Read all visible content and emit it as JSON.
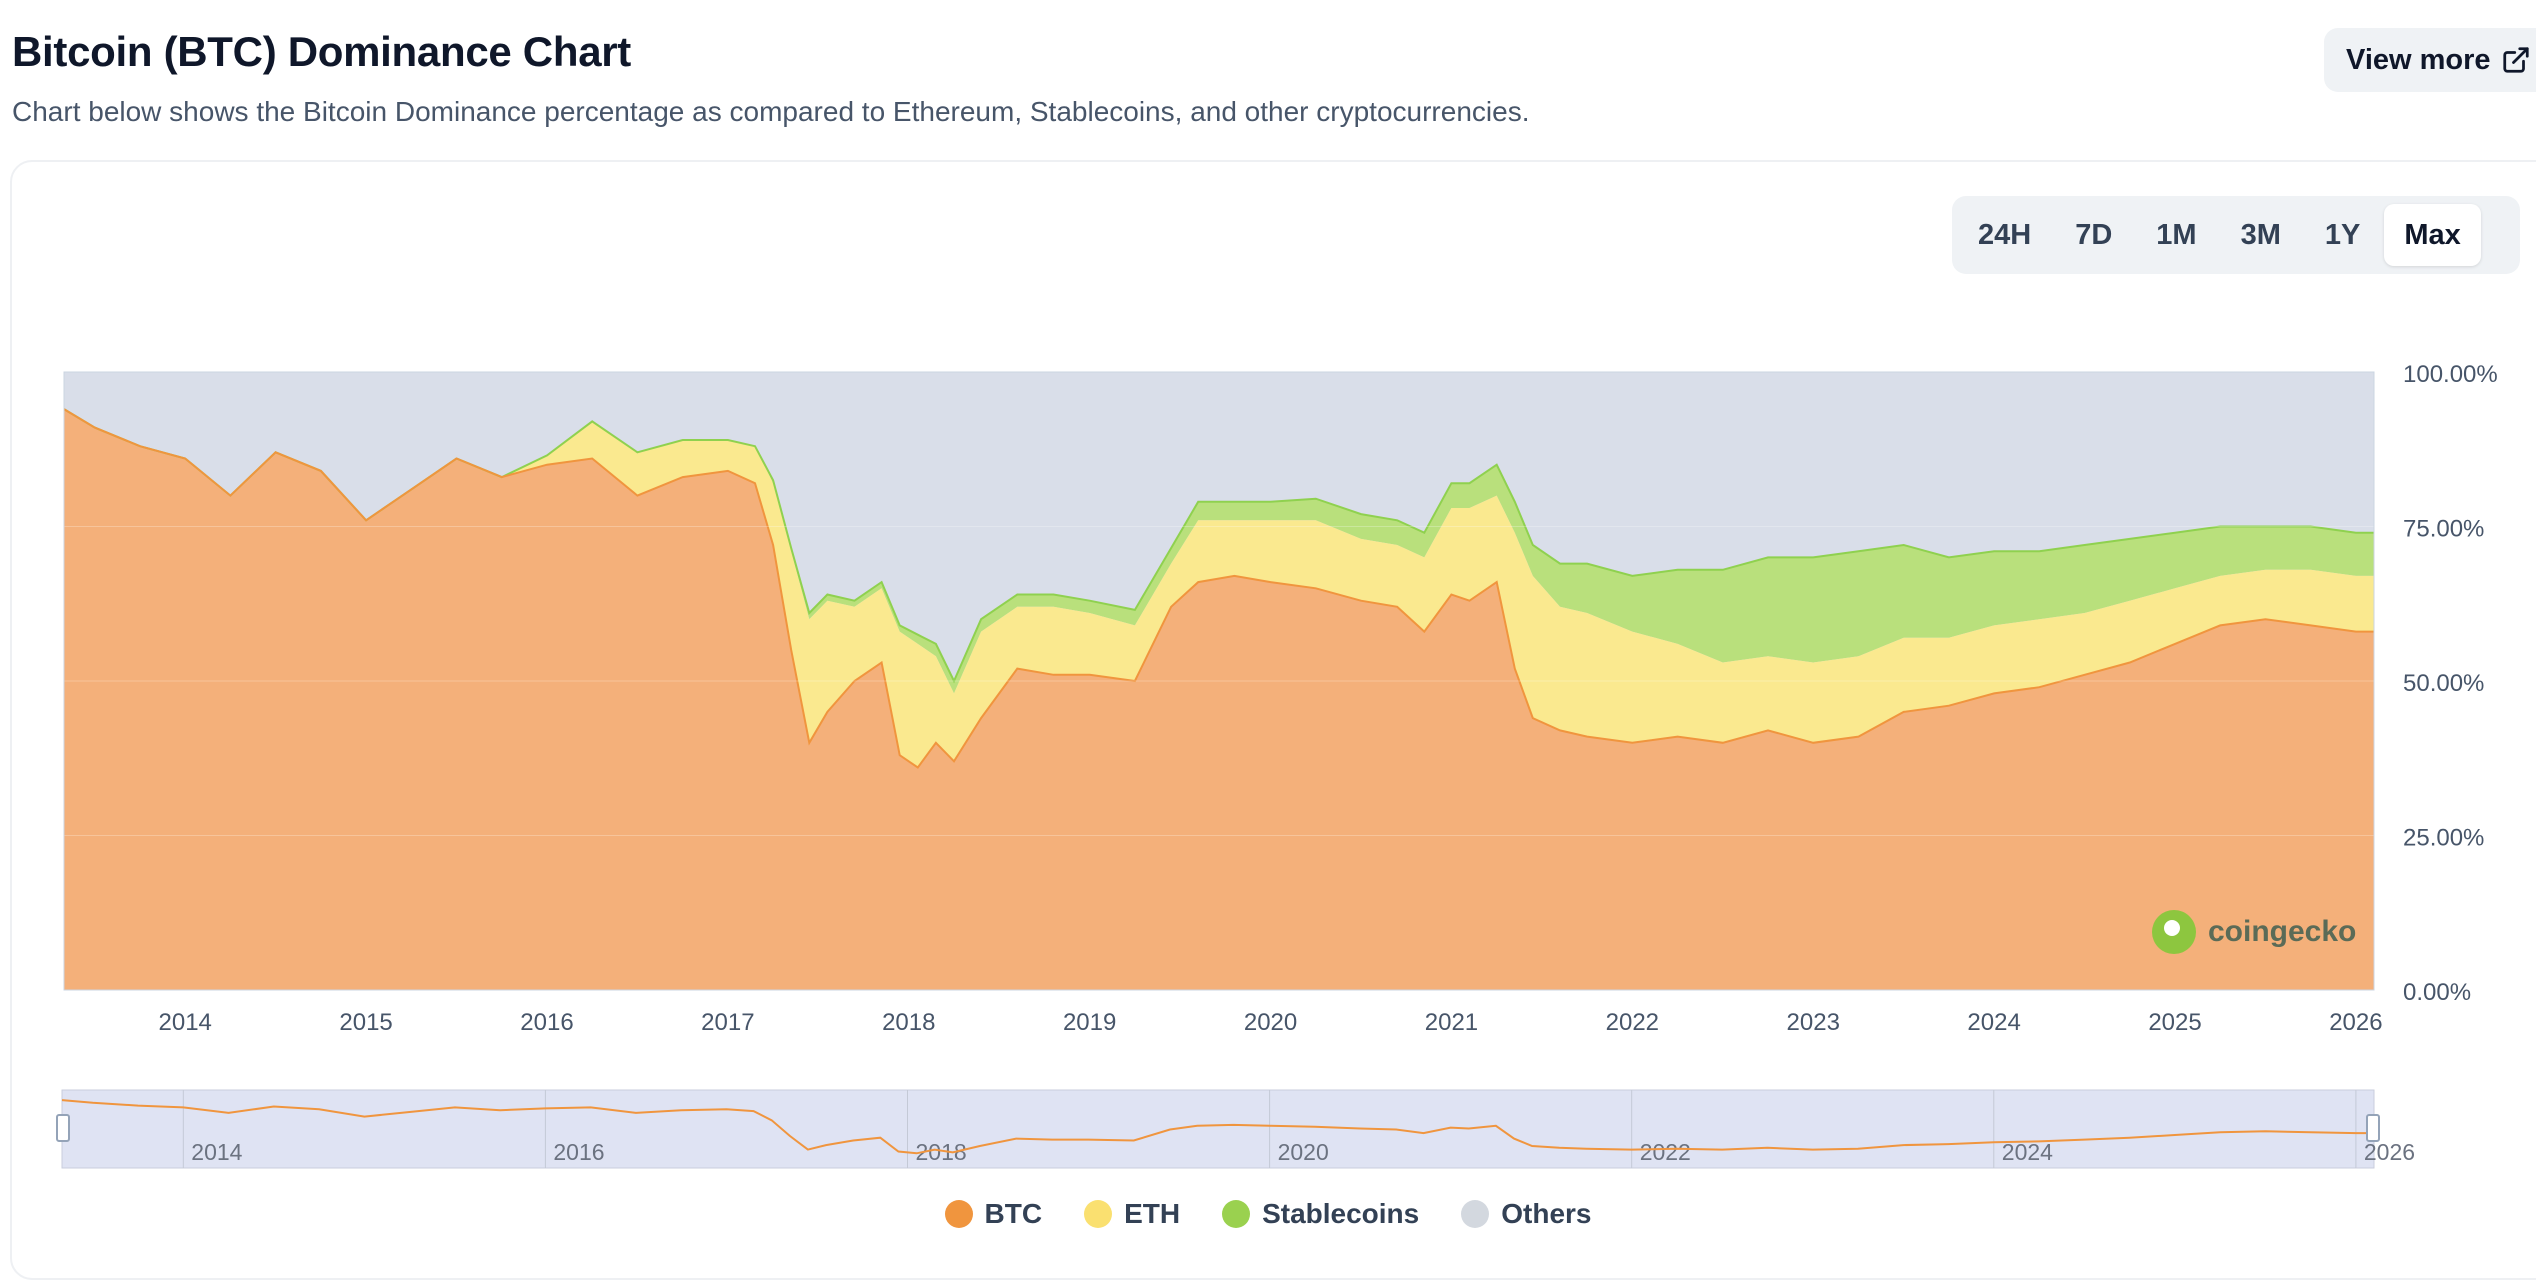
{
  "header": {
    "title": "Bitcoin (BTC) Dominance Chart",
    "subtitle": "Chart below shows the Bitcoin Dominance percentage as compared to Ethereum, Stablecoins, and other cryptocurrencies.",
    "view_more_label": "View more"
  },
  "range_buttons": [
    "24H",
    "7D",
    "1M",
    "3M",
    "1Y",
    "Max"
  ],
  "range_selected": "Max",
  "logo_text": "coingecko",
  "colors": {
    "btc": "#f4b07a",
    "btc_line": "#f0953e",
    "eth": "#fae98f",
    "stable": "#b9e07c",
    "stable_line": "#8fd14f",
    "others": "#d9dee9",
    "legend_btc": "#f0953e",
    "legend_eth": "#fae070",
    "legend_stable": "#9ad14f",
    "legend_others": "#d3d8df"
  },
  "chart_data": {
    "type": "area",
    "stacked": true,
    "title": "Bitcoin (BTC) Dominance Chart",
    "ylim": [
      0,
      100
    ],
    "yticks": [
      "0.00%",
      "25.00%",
      "50.00%",
      "75.00%",
      "100.00%"
    ],
    "xlim": [
      2013.33,
      2026.1
    ],
    "xticks": [
      "2014",
      "2015",
      "2016",
      "2017",
      "2018",
      "2019",
      "2020",
      "2021",
      "2022",
      "2023",
      "2024",
      "2025",
      "2026"
    ],
    "x": [
      2013.33,
      2013.5,
      2013.75,
      2014.0,
      2014.25,
      2014.5,
      2014.75,
      2015.0,
      2015.25,
      2015.5,
      2015.75,
      2016.0,
      2016.25,
      2016.5,
      2016.75,
      2017.0,
      2017.15,
      2017.25,
      2017.35,
      2017.45,
      2017.55,
      2017.7,
      2017.85,
      2017.95,
      2018.05,
      2018.15,
      2018.25,
      2018.4,
      2018.6,
      2018.8,
      2019.0,
      2019.25,
      2019.45,
      2019.6,
      2019.8,
      2020.0,
      2020.25,
      2020.5,
      2020.7,
      2020.85,
      2021.0,
      2021.1,
      2021.25,
      2021.35,
      2021.45,
      2021.6,
      2021.75,
      2022.0,
      2022.25,
      2022.5,
      2022.75,
      2023.0,
      2023.25,
      2023.5,
      2023.75,
      2024.0,
      2024.25,
      2024.5,
      2024.75,
      2025.0,
      2025.25,
      2025.5,
      2025.75,
      2026.0,
      2026.1
    ],
    "series": [
      {
        "name": "BTC",
        "values": [
          94,
          91,
          88,
          86,
          80,
          87,
          84,
          76,
          81,
          86,
          83,
          85,
          86,
          80,
          83,
          84,
          82,
          72,
          55,
          40,
          45,
          50,
          53,
          38,
          36,
          40,
          37,
          44,
          52,
          51,
          51,
          50,
          62,
          66,
          67,
          66,
          65,
          63,
          62,
          58,
          64,
          63,
          66,
          52,
          44,
          42,
          41,
          40,
          41,
          40,
          42,
          40,
          41,
          45,
          46,
          48,
          49,
          51,
          53,
          56,
          59,
          60,
          59,
          58,
          58
        ]
      },
      {
        "name": "ETH",
        "values": [
          0,
          0,
          0,
          0,
          0,
          0,
          0,
          0,
          0,
          0,
          0,
          1.5,
          6,
          7,
          6,
          5,
          6,
          10,
          16,
          20,
          18,
          12,
          12,
          20,
          20,
          14,
          11,
          14,
          10,
          11,
          10,
          9,
          7,
          10,
          9,
          10,
          11,
          10,
          10,
          12,
          14,
          15,
          14,
          22,
          23,
          20,
          20,
          18,
          15,
          13,
          12,
          13,
          13,
          12,
          11,
          11,
          11,
          10,
          10,
          9,
          8,
          8,
          9,
          9,
          9
        ]
      },
      {
        "name": "Stablecoins",
        "values": [
          0,
          0,
          0,
          0,
          0,
          0,
          0,
          0,
          0,
          0,
          0,
          0,
          0,
          0,
          0,
          0,
          0,
          0.5,
          0.5,
          1,
          1,
          1,
          1,
          1,
          1.5,
          2,
          2,
          2,
          2,
          2,
          2,
          2.5,
          2.5,
          3,
          3,
          3,
          3.5,
          4,
          4,
          4,
          4,
          4,
          5,
          5,
          5,
          7,
          8,
          9,
          12,
          15,
          16,
          17,
          17,
          15,
          13,
          12,
          11,
          11,
          10,
          9,
          8,
          7,
          7,
          7,
          7
        ]
      }
    ],
    "others_note": "Others fills remainder to 100%",
    "legend": [
      "BTC",
      "ETH",
      "Stablecoins",
      "Others"
    ],
    "legend_position": "bottom-center",
    "navigator_labels": [
      "2014",
      "2016",
      "2018",
      "2020",
      "2022",
      "2024",
      "2026"
    ]
  }
}
